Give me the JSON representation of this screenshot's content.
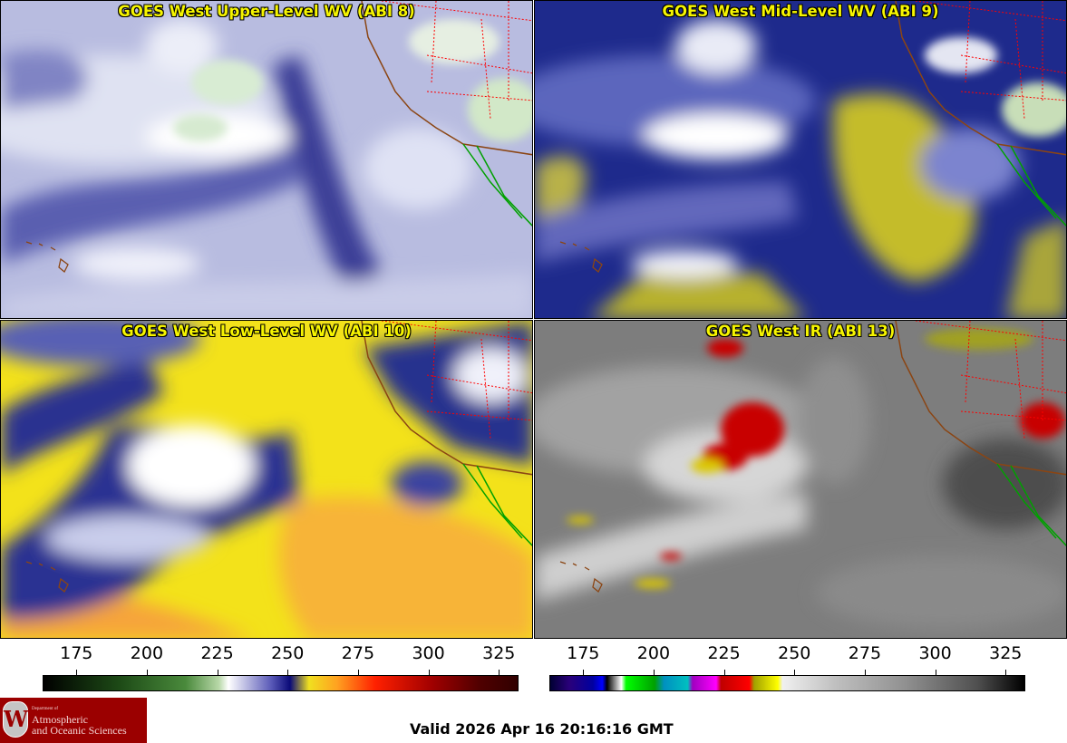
{
  "panels": [
    {
      "title": "GOES West Upper-Level WV (ABI 8)"
    },
    {
      "title": "GOES West Mid-Level WV (ABI 9)"
    },
    {
      "title": "GOES West Low-Level WV (ABI 10)"
    },
    {
      "title": "GOES West IR (ABI 13)"
    }
  ],
  "colorbars": [
    {
      "ticks": [
        "175",
        "200",
        "225",
        "250",
        "275",
        "300",
        "325"
      ],
      "tick_values": [
        175,
        200,
        225,
        250,
        275,
        300,
        325
      ],
      "range": [
        163,
        332
      ]
    },
    {
      "ticks": [
        "175",
        "200",
        "225",
        "250",
        "275",
        "300",
        "325"
      ],
      "tick_values": [
        175,
        200,
        225,
        250,
        275,
        300,
        325
      ],
      "range": [
        163,
        332
      ]
    }
  ],
  "logo": {
    "dept": "Department of",
    "line1": "Atmospheric",
    "line2": "and Oceanic Sciences",
    "seal": "W"
  },
  "valid_time": "Valid 2026 Apr 16 20:16:16 GMT",
  "colors": {
    "title_text": "#f6f500",
    "coast": "#8b4513",
    "borders": "#ff0000",
    "mexico": "#00a000"
  }
}
